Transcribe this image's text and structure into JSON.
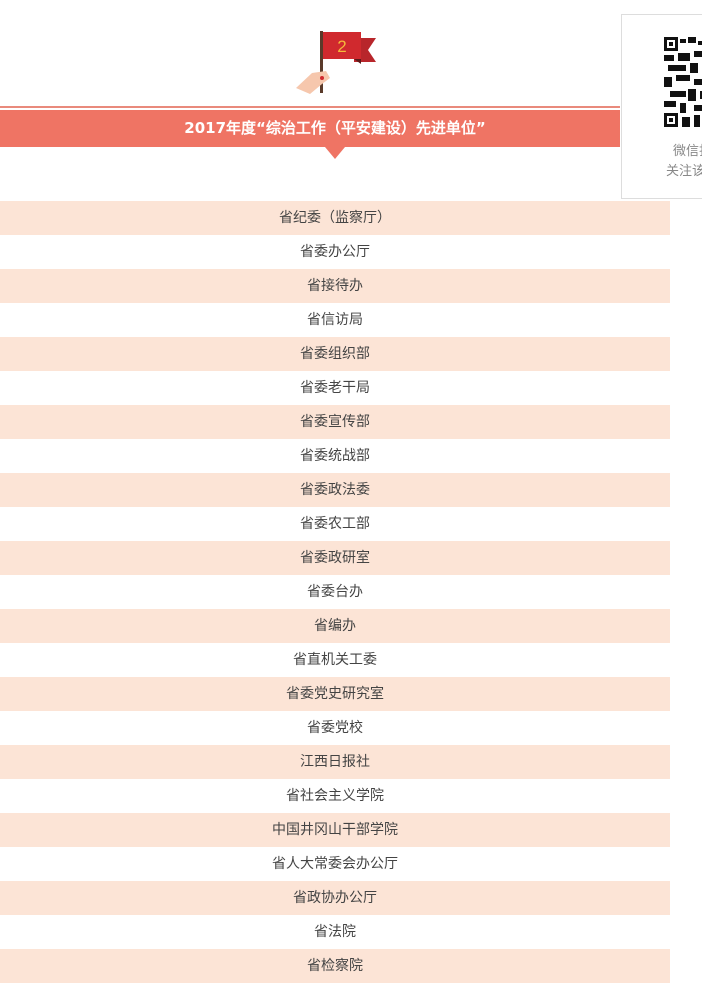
{
  "header": {
    "flag_number": "2",
    "title": "2017年度“综治工作（平安建设）先进单位”",
    "accent": "#ef7464",
    "row_tint": "#fce4d6"
  },
  "qr": {
    "line1": "微信扫",
    "line2": "关注该"
  },
  "units": [
    "省纪委（监察厅）",
    "省委办公厅",
    "省接待办",
    "省信访局",
    "省委组织部",
    "省委老干局",
    "省委宣传部",
    "省委统战部",
    "省委政法委",
    "省委农工部",
    "省委政研室",
    "省委台办",
    "省编办",
    "省直机关工委",
    "省委党史研究室",
    "省委党校",
    "江西日报社",
    "省社会主义学院",
    "中国井冈山干部学院",
    "省人大常委会办公厅",
    "省政协办公厅",
    "省法院",
    "省检察院"
  ]
}
